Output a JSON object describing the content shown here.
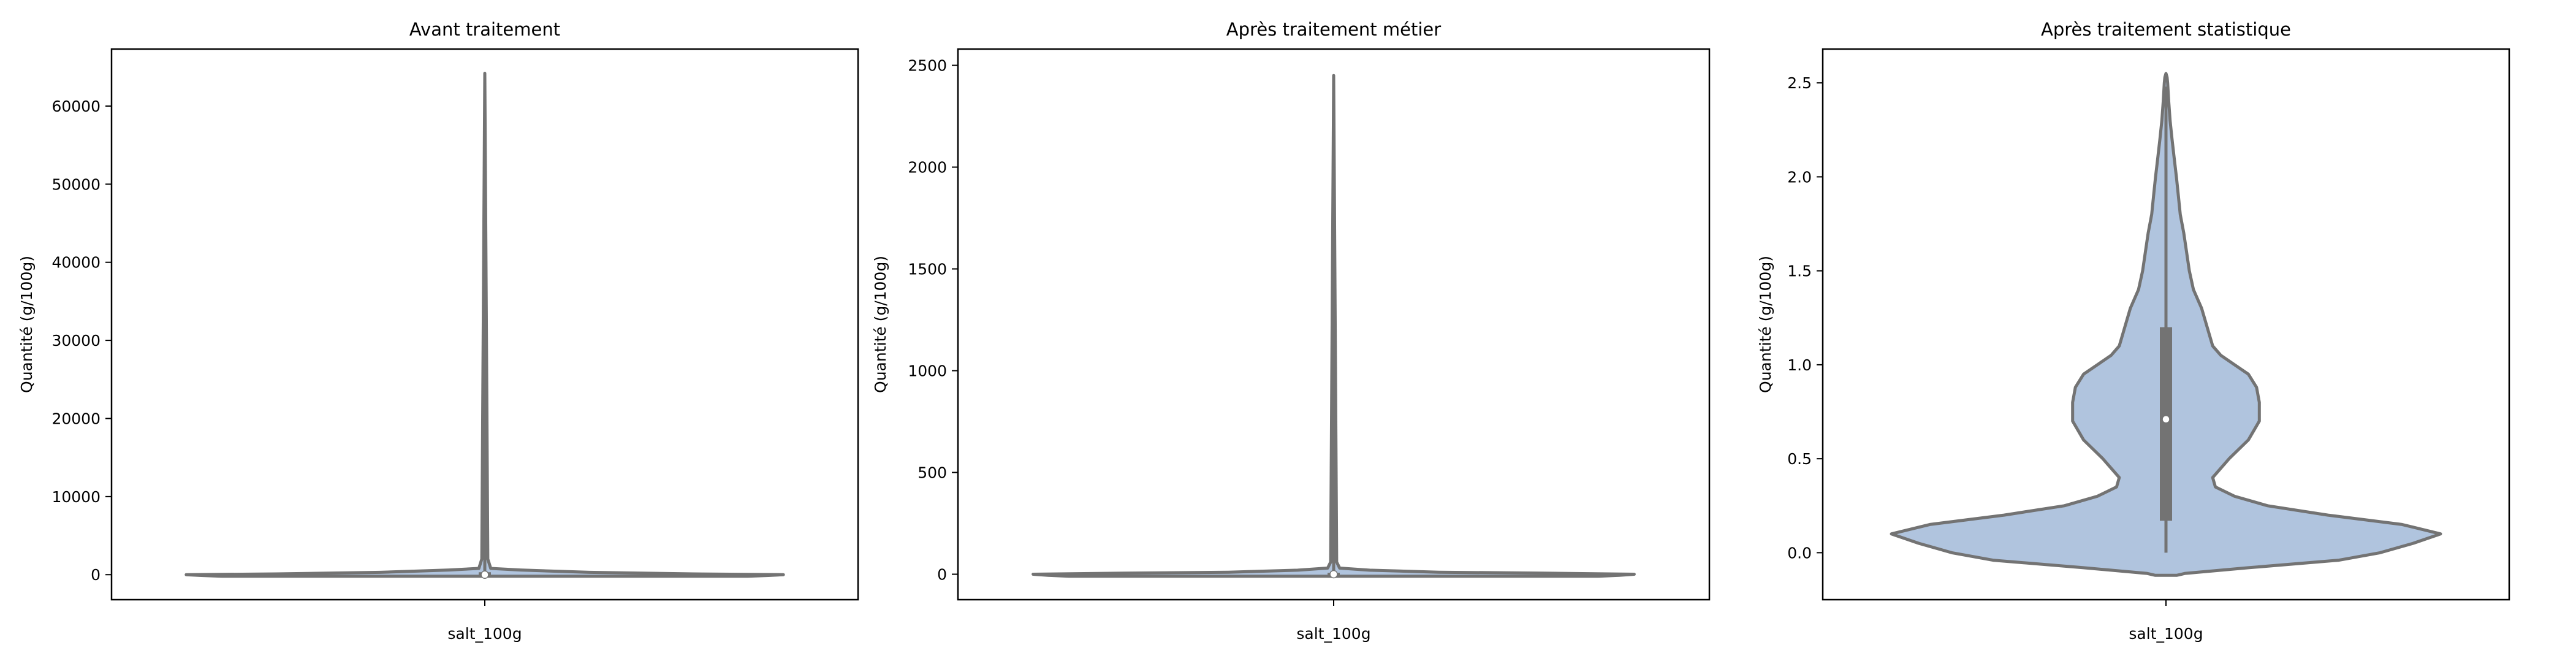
{
  "figure": {
    "background": "#ffffff"
  },
  "chart_data": [
    {
      "type": "violin",
      "title": "Avant traitement",
      "xlabel": "salt_100g",
      "ylabel": "Quantité (g/100g)",
      "categories": [
        "salt_100g"
      ],
      "ylim": [
        -3200,
        67300
      ],
      "yticks": [
        0,
        10000,
        20000,
        30000,
        40000,
        50000,
        60000
      ],
      "tick_labels": [
        "0",
        "10000",
        "20000",
        "30000",
        "40000",
        "50000",
        "60000"
      ],
      "fill_color": "#b0c4de",
      "line_color": "#737373",
      "violin": {
        "profile_y": [
          -200,
          -100,
          0,
          100,
          300,
          600,
          800,
          2000,
          64200
        ],
        "profile_width": [
          0.88,
          0.95,
          1.0,
          0.7,
          0.35,
          0.12,
          0.02,
          0.01,
          0.0
        ]
      },
      "box": {
        "q1": 0,
        "median": 0,
        "q3": 0,
        "whisker_low": -200,
        "whisker_high": 64200
      }
    },
    {
      "type": "violin",
      "title": "Après traitement métier",
      "xlabel": "salt_100g",
      "ylabel": "Quantité (g/100g)",
      "categories": [
        "salt_100g"
      ],
      "ylim": [
        -125,
        2580
      ],
      "yticks": [
        0,
        500,
        1000,
        1500,
        2000,
        2500
      ],
      "tick_labels": [
        "0",
        "500",
        "1000",
        "1500",
        "2000",
        "2500"
      ],
      "fill_color": "#b0c4de",
      "line_color": "#737373",
      "violin": {
        "profile_y": [
          -10,
          -5,
          0,
          5,
          10,
          20,
          30,
          60,
          2450
        ],
        "profile_width": [
          0.88,
          0.95,
          1.0,
          0.7,
          0.35,
          0.12,
          0.02,
          0.01,
          0.0
        ]
      },
      "box": {
        "q1": -10,
        "median": 0,
        "q3": 0,
        "whisker_low": -10,
        "whisker_high": 2450
      }
    },
    {
      "type": "violin",
      "title": "Après traitement statistique",
      "xlabel": "salt_100g",
      "ylabel": "Quantité (g/100g)",
      "categories": [
        "salt_100g"
      ],
      "ylim": [
        -0.25,
        2.68
      ],
      "yticks": [
        0.0,
        0.5,
        1.0,
        1.5,
        2.0,
        2.5
      ],
      "tick_labels": [
        "0.0",
        "0.5",
        "1.0",
        "1.5",
        "2.0",
        "2.5"
      ],
      "fill_color": "#b0c4de",
      "line_color": "#737373",
      "violin": {
        "profile_y": [
          -0.12,
          -0.11,
          -0.08,
          -0.04,
          0.0,
          0.05,
          0.1,
          0.15,
          0.2,
          0.25,
          0.3,
          0.35,
          0.4,
          0.5,
          0.6,
          0.7,
          0.8,
          0.88,
          0.95,
          1.0,
          1.05,
          1.1,
          1.2,
          1.3,
          1.4,
          1.5,
          1.6,
          1.7,
          1.8,
          1.9,
          2.0,
          2.1,
          2.2,
          2.3,
          2.4,
          2.45,
          2.5,
          2.53,
          2.55
        ],
        "profile_width": [
          0.04,
          0.07,
          0.3,
          0.63,
          0.78,
          0.9,
          1.0,
          0.86,
          0.59,
          0.37,
          0.25,
          0.18,
          0.17,
          0.23,
          0.3,
          0.34,
          0.34,
          0.33,
          0.3,
          0.25,
          0.2,
          0.17,
          0.15,
          0.13,
          0.1,
          0.085,
          0.075,
          0.065,
          0.052,
          0.045,
          0.038,
          0.03,
          0.022,
          0.015,
          0.01,
          0.008,
          0.006,
          0.004,
          0.0
        ]
      },
      "box": {
        "q1": 0.17,
        "median": 0.71,
        "q3": 1.2,
        "whisker_low": 0.0,
        "whisker_high": 2.48
      }
    }
  ]
}
